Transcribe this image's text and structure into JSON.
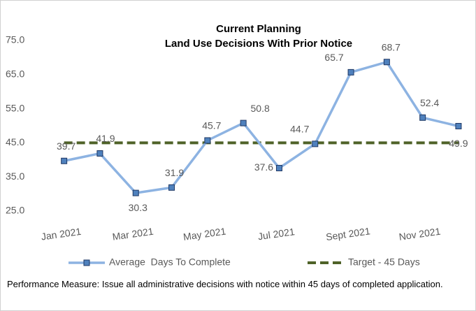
{
  "chart_data": {
    "type": "line",
    "title": "Current Planning",
    "subtitle": "Land Use Decisions With Prior Notice",
    "categories": [
      "Jan 2021",
      null,
      "Mar 2021",
      null,
      "May 2021",
      null,
      "Jul 2021",
      null,
      "Sept 2021",
      null,
      "Nov 2021",
      null
    ],
    "series": [
      {
        "name": "Average  Days To Complete",
        "color": "#8db3e2",
        "marker_color": "#4f81bd",
        "values": [
          39.7,
          41.9,
          30.3,
          31.9,
          45.7,
          50.8,
          37.6,
          44.7,
          65.7,
          68.7,
          52.4,
          49.9
        ]
      },
      {
        "name": "Target - 45 Days",
        "color": "#4f6228",
        "dashed": true,
        "values": [
          45,
          45,
          45,
          45,
          45,
          45,
          45,
          45,
          45,
          45,
          45,
          45
        ]
      }
    ],
    "ylim": [
      25,
      75
    ],
    "yticks": [
      {
        "value": 25,
        "label": "25.0"
      },
      {
        "value": 35,
        "label": "35.0"
      },
      {
        "value": 45,
        "label": "45.0"
      },
      {
        "value": 55,
        "label": "55.0"
      },
      {
        "value": 65,
        "label": "65.0"
      },
      {
        "value": 75,
        "label": "75.0"
      }
    ],
    "grid": false,
    "legend": "bottom",
    "note": "Performance Measure: Issue all administrative decisions with notice within 45 days of completed application."
  }
}
